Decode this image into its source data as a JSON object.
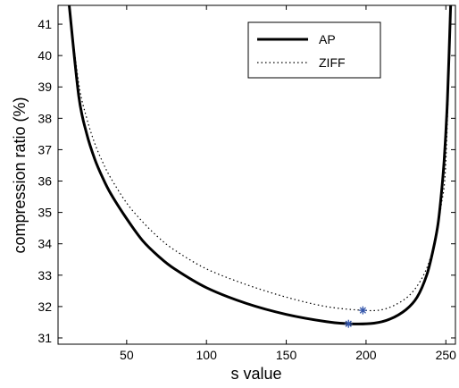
{
  "chart_data": {
    "type": "line",
    "xlabel": "s value",
    "ylabel": "compression ratio (%)",
    "xlim": [
      7,
      256
    ],
    "ylim": [
      30.8,
      41.6
    ],
    "xticks": [
      50,
      100,
      150,
      200,
      250
    ],
    "yticks": [
      31,
      32,
      33,
      34,
      35,
      36,
      37,
      38,
      39,
      40,
      41
    ],
    "grid": false,
    "legend": {
      "position": "top-right"
    },
    "series": [
      {
        "name": "AP",
        "style": "solid",
        "color": "#000000",
        "x": [
          14,
          20,
          25,
          30,
          35,
          40,
          50,
          60,
          70,
          80,
          100,
          125,
          150,
          175,
          190,
          205,
          215,
          225,
          232,
          238,
          242,
          245,
          247,
          249,
          251,
          253
        ],
        "y": [
          41.6,
          38.7,
          37.5,
          36.7,
          36.1,
          35.6,
          34.8,
          34.1,
          33.6,
          33.2,
          32.6,
          32.1,
          31.75,
          31.52,
          31.45,
          31.47,
          31.6,
          31.9,
          32.3,
          33.0,
          33.8,
          34.6,
          35.5,
          36.7,
          38.6,
          41.6
        ]
      },
      {
        "name": "ZIFF",
        "style": "dotted",
        "color": "#000000",
        "x": [
          14,
          20,
          25,
          30,
          35,
          40,
          50,
          60,
          70,
          80,
          100,
          125,
          150,
          175,
          198,
          210,
          220,
          228,
          235,
          240,
          244,
          247,
          250,
          253
        ],
        "y": [
          41.6,
          39.1,
          38.0,
          37.2,
          36.6,
          36.1,
          35.3,
          34.7,
          34.2,
          33.8,
          33.2,
          32.7,
          32.3,
          32.0,
          31.88,
          31.9,
          32.1,
          32.4,
          32.9,
          33.5,
          34.3,
          35.2,
          36.6,
          41.6
        ]
      }
    ],
    "markers": [
      {
        "series": "AP",
        "x": 189,
        "y": 31.45,
        "symbol": "*",
        "color": "#3355aa"
      },
      {
        "series": "ZIFF",
        "x": 198,
        "y": 31.88,
        "symbol": "*",
        "color": "#3355aa"
      }
    ]
  }
}
